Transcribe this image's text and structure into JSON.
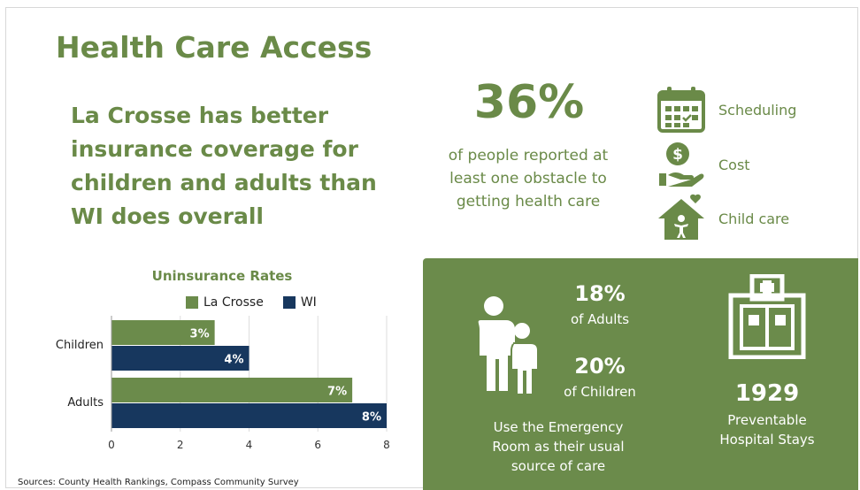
{
  "title": "Health Care Access",
  "headline": "La Crosse has better insurance coverage for children and adults than WI does overall",
  "stat": {
    "value": "36%",
    "description": "of people reported at least one obstacle to getting health care"
  },
  "obstacles": [
    {
      "label": "Scheduling",
      "icon": "calendar-icon"
    },
    {
      "label": "Cost",
      "icon": "hand-money-icon"
    },
    {
      "label": "Child care",
      "icon": "house-child-icon"
    }
  ],
  "panel": {
    "adults_pct": "18%",
    "adults_label": "of Adults",
    "children_pct": "20%",
    "children_label": "of Children",
    "er_caption": "Use the Emergency Room as their usual source of care",
    "hospital_number": "1929",
    "hospital_caption": "Preventable Hospital Stays"
  },
  "chart_data": {
    "type": "bar",
    "orientation": "horizontal",
    "title": "Uninsurance Rates",
    "categories": [
      "Children",
      "Adults"
    ],
    "series": [
      {
        "name": "La Crosse",
        "values": [
          3,
          7
        ],
        "labels": [
          "3%",
          "7%"
        ]
      },
      {
        "name": "WI",
        "values": [
          4,
          8
        ],
        "labels": [
          "4%",
          "8%"
        ]
      }
    ],
    "xlim": [
      0,
      8
    ],
    "xticks": [
      "0",
      "2",
      "4",
      "6",
      "8"
    ],
    "grid": true,
    "legend_position": "top",
    "colors": {
      "La Crosse": "#6b8b4b",
      "WI": "#17375e"
    }
  },
  "sources": "Sources: County Health Rankings, Compass Community Survey",
  "colors": {
    "accent": "#6a8a48",
    "panel": "#6b8b4b",
    "navy": "#17375e"
  }
}
